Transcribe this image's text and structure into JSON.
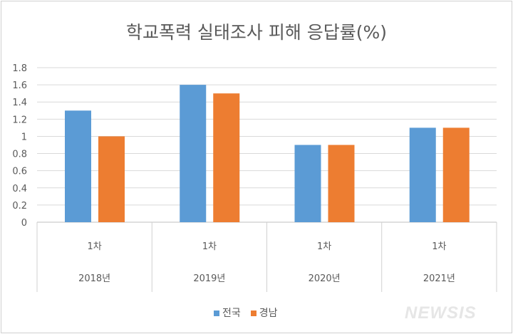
{
  "chart_data": {
    "type": "bar",
    "title": "학교폭력 실태조사 피해 응답률(%)",
    "categories": [
      {
        "sub": "1차",
        "group": "2018년"
      },
      {
        "sub": "1차",
        "group": "2019년"
      },
      {
        "sub": "1차",
        "group": "2020년"
      },
      {
        "sub": "1차",
        "group": "2021년"
      }
    ],
    "series": [
      {
        "name": "전국",
        "color": "#5b9bd5",
        "values": [
          1.3,
          1.6,
          0.9,
          1.1
        ]
      },
      {
        "name": "경남",
        "color": "#ed7d31",
        "values": [
          1.0,
          1.5,
          0.9,
          1.1
        ]
      }
    ],
    "yticks": [
      "0",
      "0.2",
      "0.4",
      "0.6",
      "0.8",
      "1",
      "1.2",
      "1.4",
      "1.6",
      "1.8"
    ],
    "ylim": [
      0,
      1.8
    ],
    "grid": true,
    "legend": "bottom"
  },
  "watermark": "NEWSIS"
}
